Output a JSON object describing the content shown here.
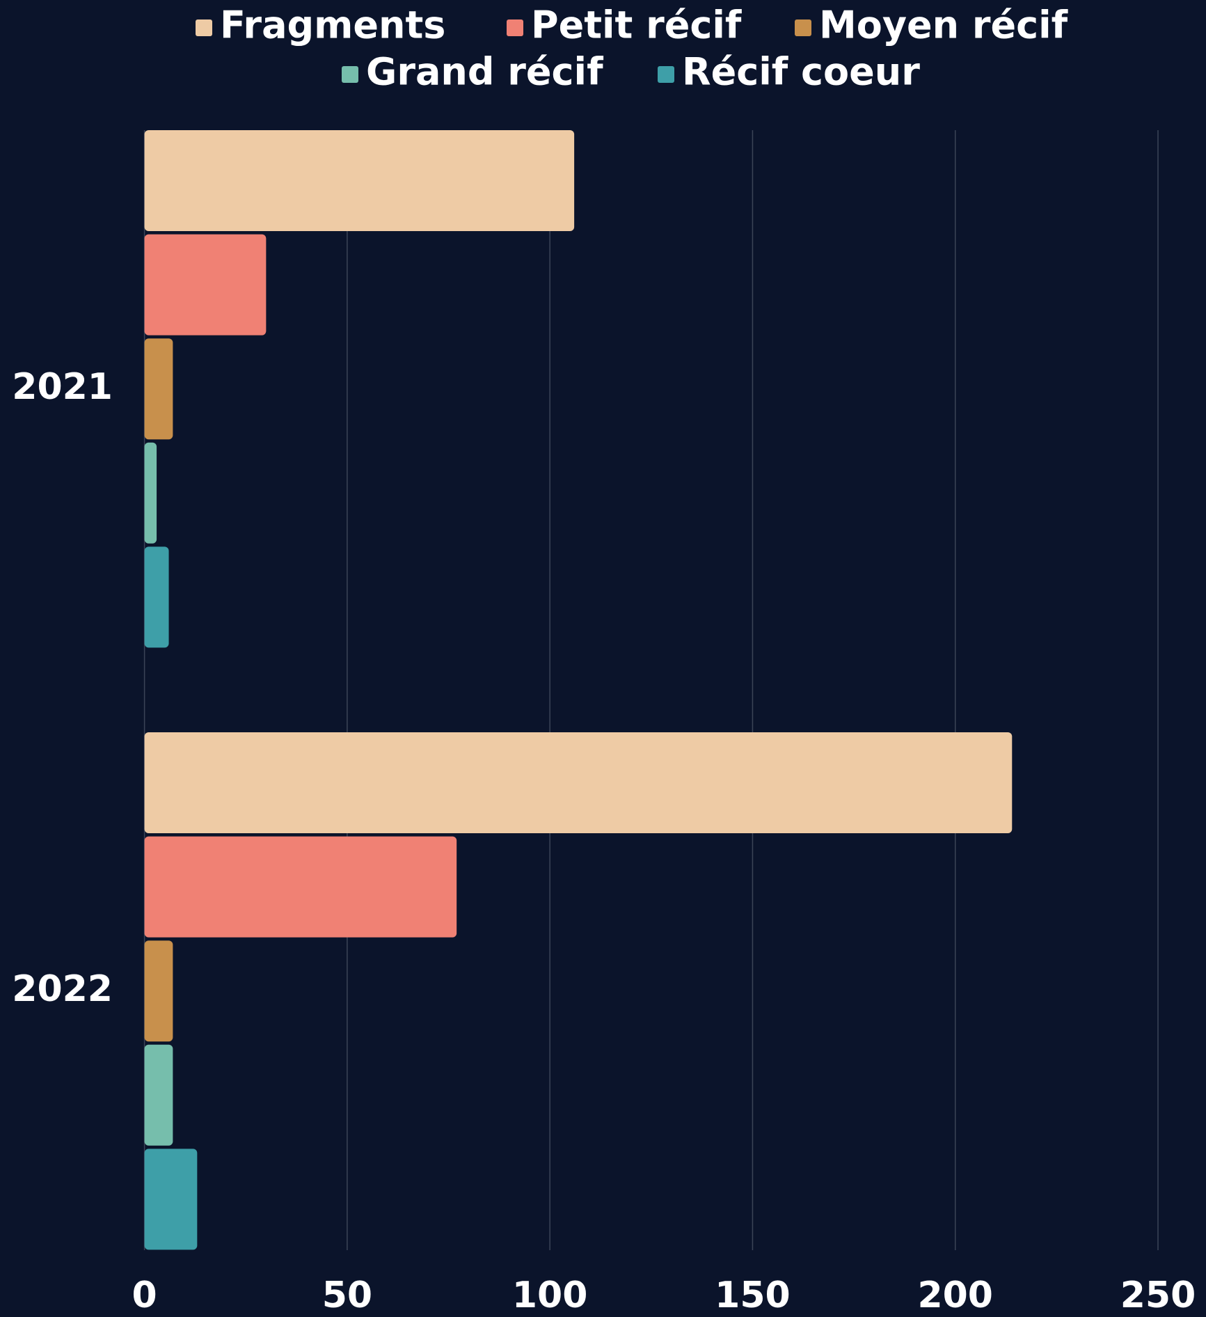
{
  "chart_data": {
    "type": "horizontal-bar",
    "categories": [
      "2021",
      "2022"
    ],
    "series": [
      {
        "name": "Fragments",
        "color": "#eecba5",
        "values": [
          106,
          214
        ]
      },
      {
        "name": "Petit récif",
        "color": "#f08174",
        "values": [
          30,
          77
        ]
      },
      {
        "name": "Moyen récif",
        "color": "#c8904c",
        "values": [
          7,
          7
        ]
      },
      {
        "name": "Grand récif",
        "color": "#76beac",
        "values": [
          3,
          7
        ]
      },
      {
        "name": "Récif coeur",
        "color": "#3e9fa8",
        "values": [
          6,
          13
        ]
      }
    ],
    "xlim": [
      0,
      250
    ],
    "xticks": [
      0,
      50,
      100,
      150,
      200,
      250
    ],
    "grid": true
  }
}
